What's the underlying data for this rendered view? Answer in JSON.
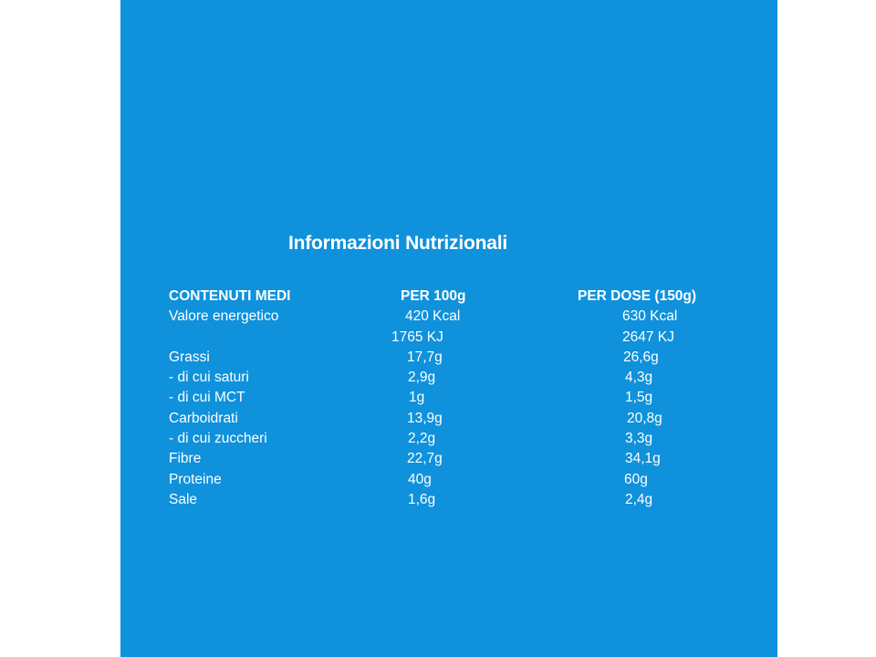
{
  "title": "Informazioni Nutrizionali",
  "headers": {
    "label": "CONTENUTI MEDI",
    "per100": "PER 100g",
    "dose": "PER DOSE (150g)"
  },
  "rows": [
    {
      "label": "Valore energetico",
      "per100": "420 Kcal",
      "dose": "630 Kcal"
    },
    {
      "label": "",
      "per100": "1765 KJ",
      "dose": "2647 KJ"
    },
    {
      "label": "Grassi",
      "per100": "17,7g",
      "dose": "26,6g"
    },
    {
      "label": "- di cui saturi",
      "per100": "2,9g",
      "dose": "4,3g"
    },
    {
      "label": "- di cui MCT",
      "per100": "1g",
      "dose": "1,5g"
    },
    {
      "label": "Carboidrati",
      "per100": "13,9g",
      "dose": "20,8g"
    },
    {
      "label": "- di cui zuccheri",
      "per100": "2,2g",
      "dose": "3,3g"
    },
    {
      "label": "Fibre",
      "per100": "22,7g",
      "dose": "34,1g"
    },
    {
      "label": "Proteine",
      "per100": "40g",
      "dose": "60g"
    },
    {
      "label": "Sale",
      "per100": "1,6g",
      "dose": "2,4g"
    }
  ],
  "colors": {
    "background": "#0f91dc",
    "text": "#ffffff"
  }
}
